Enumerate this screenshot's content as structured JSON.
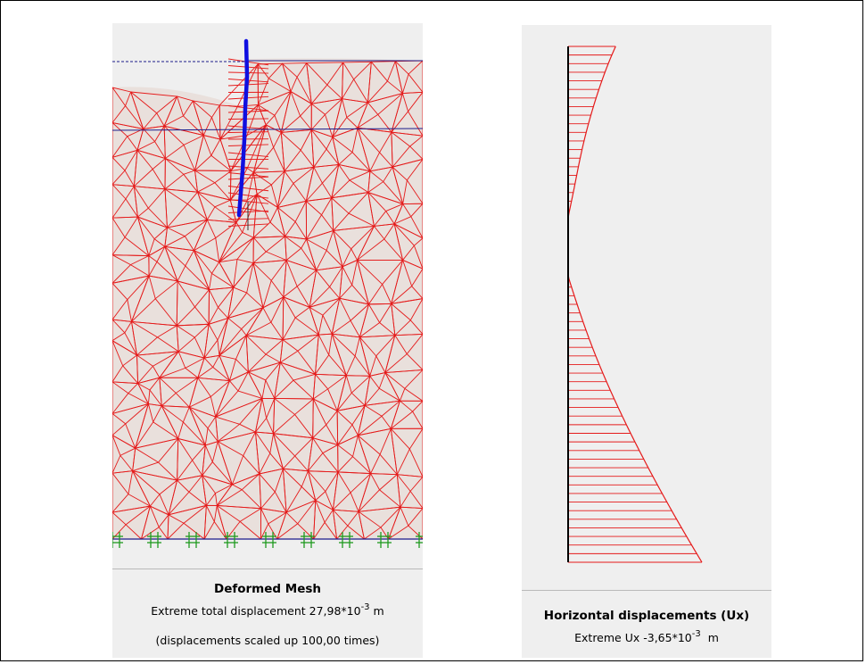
{
  "left_panel": {
    "title": "Deformed Mesh",
    "line1_prefix": "Extreme total displacement 27,98*10",
    "line1_exp": "-3",
    "line1_unit": "m",
    "line2": "(displacements scaled up 100,00 times)"
  },
  "right_panel": {
    "title": "Horizontal displacements (Ux)",
    "line1_prefix": "Extreme Ux -3,65*10",
    "line1_exp": "-3",
    "line1_unit": "m"
  },
  "colors": {
    "mesh": "#e51a1a",
    "soil_fill": "#e9e0dc",
    "wall": "#0f0fe0",
    "phreatic": "#1b1b8a",
    "fixity": "#1f9a1f",
    "panel_bg": "#efefef",
    "axis": "#000000"
  },
  "icons": [
    "fixity-icon"
  ]
}
